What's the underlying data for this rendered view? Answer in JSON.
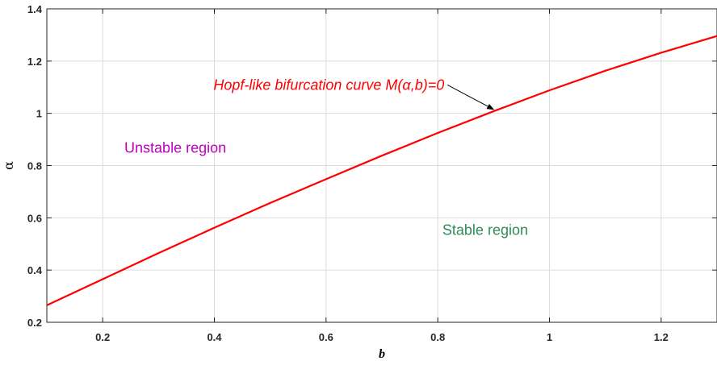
{
  "chart_data": {
    "type": "line",
    "title": "",
    "xlabel": "b",
    "ylabel": "α",
    "xlim": [
      0.1,
      1.3
    ],
    "ylim": [
      0.2,
      1.4
    ],
    "x_ticks": [
      0.2,
      0.4,
      0.6,
      0.8,
      1,
      1.2
    ],
    "x_tick_labels": [
      "0.2",
      "0.4",
      "0.6",
      "0.8",
      "1",
      "1.2"
    ],
    "y_ticks": [
      0.2,
      0.4,
      0.6,
      0.8,
      1,
      1.2,
      1.4
    ],
    "y_tick_labels": [
      "0.2",
      "0.4",
      "0.6",
      "0.8",
      "1",
      "1.2",
      "1.4"
    ],
    "grid": true,
    "series": [
      {
        "color": "#ff0000",
        "x": [
          0.1,
          0.2,
          0.3,
          0.4,
          0.5,
          0.6,
          0.7,
          0.8,
          0.9,
          1.0,
          1.1,
          1.2,
          1.3
        ],
        "y": [
          0.265,
          0.365,
          0.465,
          0.562,
          0.657,
          0.748,
          0.838,
          0.925,
          1.008,
          1.088,
          1.163,
          1.232,
          1.296
        ]
      }
    ],
    "annotations": [
      {
        "name": "curve-annotation",
        "text": "Hopf-like bifurcation curve M(α,b)=0",
        "color": "#ff0000",
        "x": 0.605,
        "y": 1.09,
        "arrow_from": [
          0.9,
          1.09
        ],
        "arrow_to": [
          0.9,
          1.015
        ]
      },
      {
        "name": "unstable-region-label",
        "text": "Unstable region",
        "color": "#bf00bf",
        "x": 0.33,
        "y": 0.85
      },
      {
        "name": "stable-region-label",
        "text": "Stable region",
        "color": "#2e8b57",
        "x": 0.885,
        "y": 0.535
      }
    ]
  }
}
